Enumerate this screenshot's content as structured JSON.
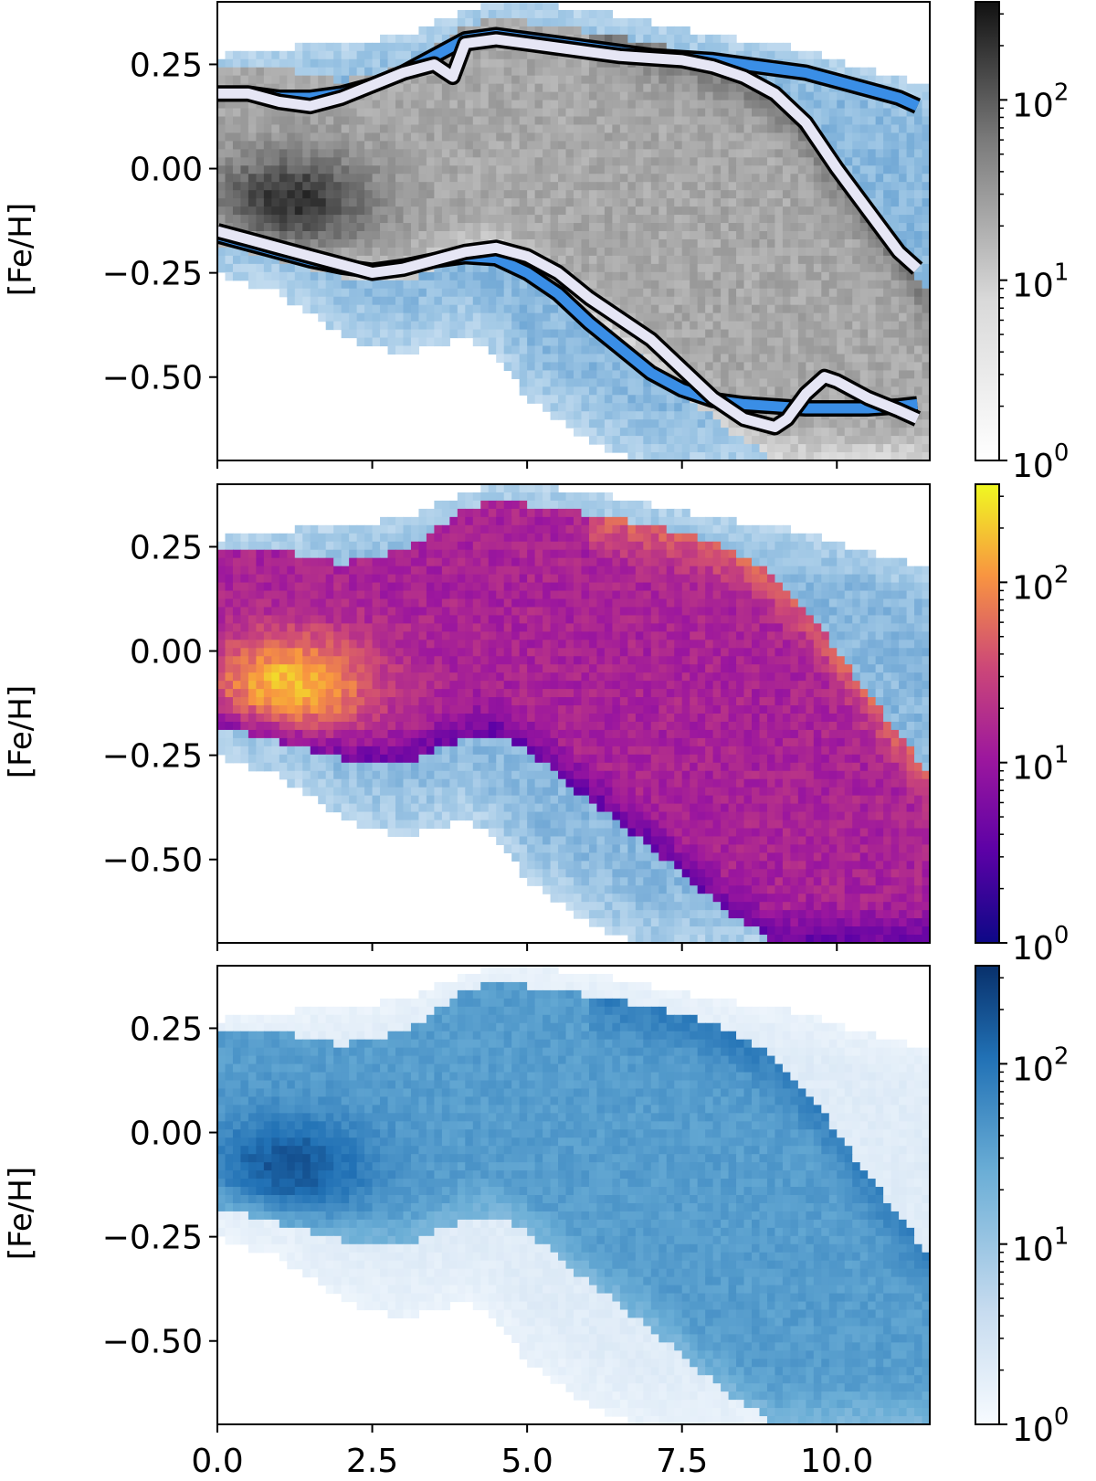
{
  "chart_data": [
    {
      "type": "heatmap",
      "panel": "top",
      "colormap": "Greys",
      "background_colormap": "Blues",
      "colors": {
        "cmap_low": "#ffffff",
        "cmap_high": "#111111",
        "bg_low": "#eef5fc",
        "bg_high": "#3f86c4"
      },
      "ylabel": "[Fe/H]",
      "xlim": [
        0,
        11.5
      ],
      "ylim": [
        -0.7,
        0.4
      ],
      "yticks": [
        0.25,
        0.0,
        -0.25,
        -0.5
      ],
      "ytick_labels": [
        "0.25",
        "0.00",
        "−0.25",
        "−0.50"
      ],
      "xticks": [
        0,
        2.5,
        5,
        7.5,
        10
      ],
      "colorbar": {
        "scale": "log",
        "range": [
          1,
          350
        ],
        "tick_labels": [
          "10",
          "10",
          "10"
        ],
        "tick_exponents": [
          "0",
          "1",
          "2"
        ]
      },
      "lines": [
        {
          "color": "#3a8ee6",
          "edge": "#000000",
          "role": "upper-blue",
          "x": [
            0,
            0.5,
            1,
            1.5,
            2,
            2.5,
            3,
            3.5,
            4,
            4.5,
            5,
            5.5,
            6,
            6.5,
            7,
            7.5,
            8,
            8.5,
            9,
            9.5,
            10,
            10.5,
            11,
            11.3
          ],
          "y": [
            0.18,
            0.18,
            0.17,
            0.17,
            0.18,
            0.2,
            0.23,
            0.27,
            0.31,
            0.32,
            0.31,
            0.3,
            0.29,
            0.28,
            0.27,
            0.265,
            0.26,
            0.25,
            0.24,
            0.23,
            0.21,
            0.19,
            0.17,
            0.15
          ]
        },
        {
          "color": "#e6e6f5",
          "edge": "#000000",
          "role": "upper-white",
          "x": [
            0,
            0.5,
            1,
            1.5,
            2,
            2.5,
            3,
            3.5,
            3.8,
            4,
            4.5,
            5,
            5.5,
            6,
            6.5,
            7,
            7.5,
            8,
            8.5,
            9,
            9.5,
            10,
            10.5,
            11,
            11.3
          ],
          "y": [
            0.18,
            0.18,
            0.16,
            0.15,
            0.17,
            0.2,
            0.23,
            0.25,
            0.22,
            0.3,
            0.31,
            0.3,
            0.29,
            0.28,
            0.27,
            0.265,
            0.26,
            0.245,
            0.22,
            0.18,
            0.11,
            0.0,
            -0.1,
            -0.2,
            -0.24
          ]
        },
        {
          "color": "#3a8ee6",
          "edge": "#000000",
          "role": "lower-blue",
          "x": [
            0,
            0.5,
            1,
            1.5,
            2,
            2.5,
            3,
            3.5,
            4,
            4.5,
            5,
            5.5,
            6,
            6.5,
            7,
            7.5,
            8,
            8.5,
            9,
            9.5,
            10,
            10.5,
            11,
            11.3
          ],
          "y": [
            -0.16,
            -0.18,
            -0.2,
            -0.22,
            -0.235,
            -0.245,
            -0.235,
            -0.22,
            -0.21,
            -0.215,
            -0.25,
            -0.3,
            -0.37,
            -0.43,
            -0.49,
            -0.53,
            -0.555,
            -0.565,
            -0.57,
            -0.575,
            -0.575,
            -0.575,
            -0.57,
            -0.565
          ]
        },
        {
          "color": "#e6e6f5",
          "edge": "#000000",
          "role": "lower-white",
          "x": [
            0,
            0.5,
            1,
            1.5,
            2,
            2.5,
            3,
            3.5,
            4,
            4.5,
            5,
            5.5,
            6,
            6.5,
            7,
            7.5,
            8,
            8.5,
            9,
            9.2,
            9.5,
            9.8,
            10,
            10.5,
            11,
            11.3
          ],
          "y": [
            -0.15,
            -0.17,
            -0.19,
            -0.21,
            -0.23,
            -0.25,
            -0.24,
            -0.22,
            -0.2,
            -0.19,
            -0.21,
            -0.25,
            -0.31,
            -0.36,
            -0.41,
            -0.48,
            -0.55,
            -0.6,
            -0.62,
            -0.6,
            -0.54,
            -0.5,
            -0.51,
            -0.55,
            -0.58,
            -0.6
          ]
        }
      ]
    },
    {
      "type": "heatmap",
      "panel": "middle",
      "colormap": "plasma",
      "background_colormap": "Blues",
      "colors": {
        "cmap_low": "#1a068f",
        "cmap_mid": "#cc4778",
        "cmap_high": "#f9e721",
        "bg_low": "#eef5fc",
        "bg_high": "#3f86c4",
        "edge_grey": "#9a9a9a"
      },
      "ylabel": "[Fe/H]",
      "xlim": [
        0,
        11.5
      ],
      "ylim": [
        -0.7,
        0.4
      ],
      "yticks": [
        0.25,
        0.0,
        -0.25,
        -0.5
      ],
      "ytick_labels": [
        "0.25",
        "0.00",
        "−0.25",
        "−0.50"
      ],
      "xticks": [
        0,
        2.5,
        5,
        7.5,
        10
      ],
      "colorbar": {
        "scale": "log",
        "range": [
          1,
          350
        ],
        "tick_labels": [
          "10",
          "10",
          "10"
        ],
        "tick_exponents": [
          "0",
          "1",
          "2"
        ]
      }
    },
    {
      "type": "heatmap",
      "panel": "bottom",
      "colormap": "Blues",
      "colors": {
        "cmap_low": "#f7fbff",
        "cmap_high": "#08306b"
      },
      "ylabel": "[Fe/H]",
      "xlim": [
        0,
        11.5
      ],
      "ylim": [
        -0.7,
        0.4
      ],
      "yticks": [
        0.25,
        0.0,
        -0.25,
        -0.5
      ],
      "ytick_labels": [
        "0.25",
        "0.00",
        "−0.25",
        "−0.50"
      ],
      "xticks": [
        0,
        2.5,
        5,
        7.5,
        10
      ],
      "xtick_labels": [
        "0.0",
        "2.5",
        "5.0",
        "7.5",
        "10.0"
      ],
      "colorbar": {
        "scale": "log",
        "range": [
          1,
          350
        ],
        "tick_labels": [
          "10",
          "10",
          "10"
        ],
        "tick_exponents": [
          "0",
          "1",
          "2"
        ]
      }
    }
  ]
}
